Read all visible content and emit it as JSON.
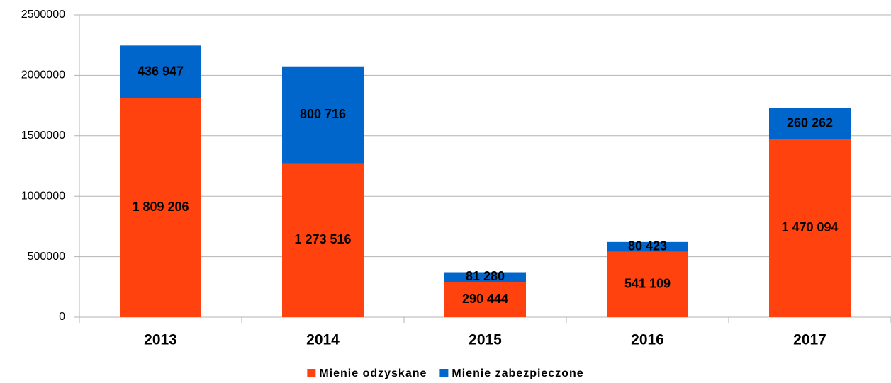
{
  "chart_data": {
    "type": "bar",
    "stacked": true,
    "categories": [
      "2013",
      "2014",
      "2015",
      "2016",
      "2017"
    ],
    "series": [
      {
        "name": "Mienie odzyskane",
        "color": "#ff420e",
        "values": [
          1809206,
          1273516,
          290444,
          541109,
          1470094
        ],
        "value_labels": [
          "1 809 206",
          "1 273 516",
          "290 444",
          "541 109",
          "1 470 094"
        ]
      },
      {
        "name": "Mienie zabezpieczone",
        "color": "#0066cc",
        "values": [
          436947,
          800716,
          81280,
          80423,
          260262
        ],
        "value_labels": [
          "436 947",
          "800 716",
          "81 280",
          "80 423",
          "260 262"
        ]
      }
    ],
    "ylim": [
      0,
      2500000
    ],
    "yticks": [
      0,
      500000,
      1000000,
      1500000,
      2000000,
      2500000
    ],
    "grid": true,
    "legend": "bottom"
  }
}
